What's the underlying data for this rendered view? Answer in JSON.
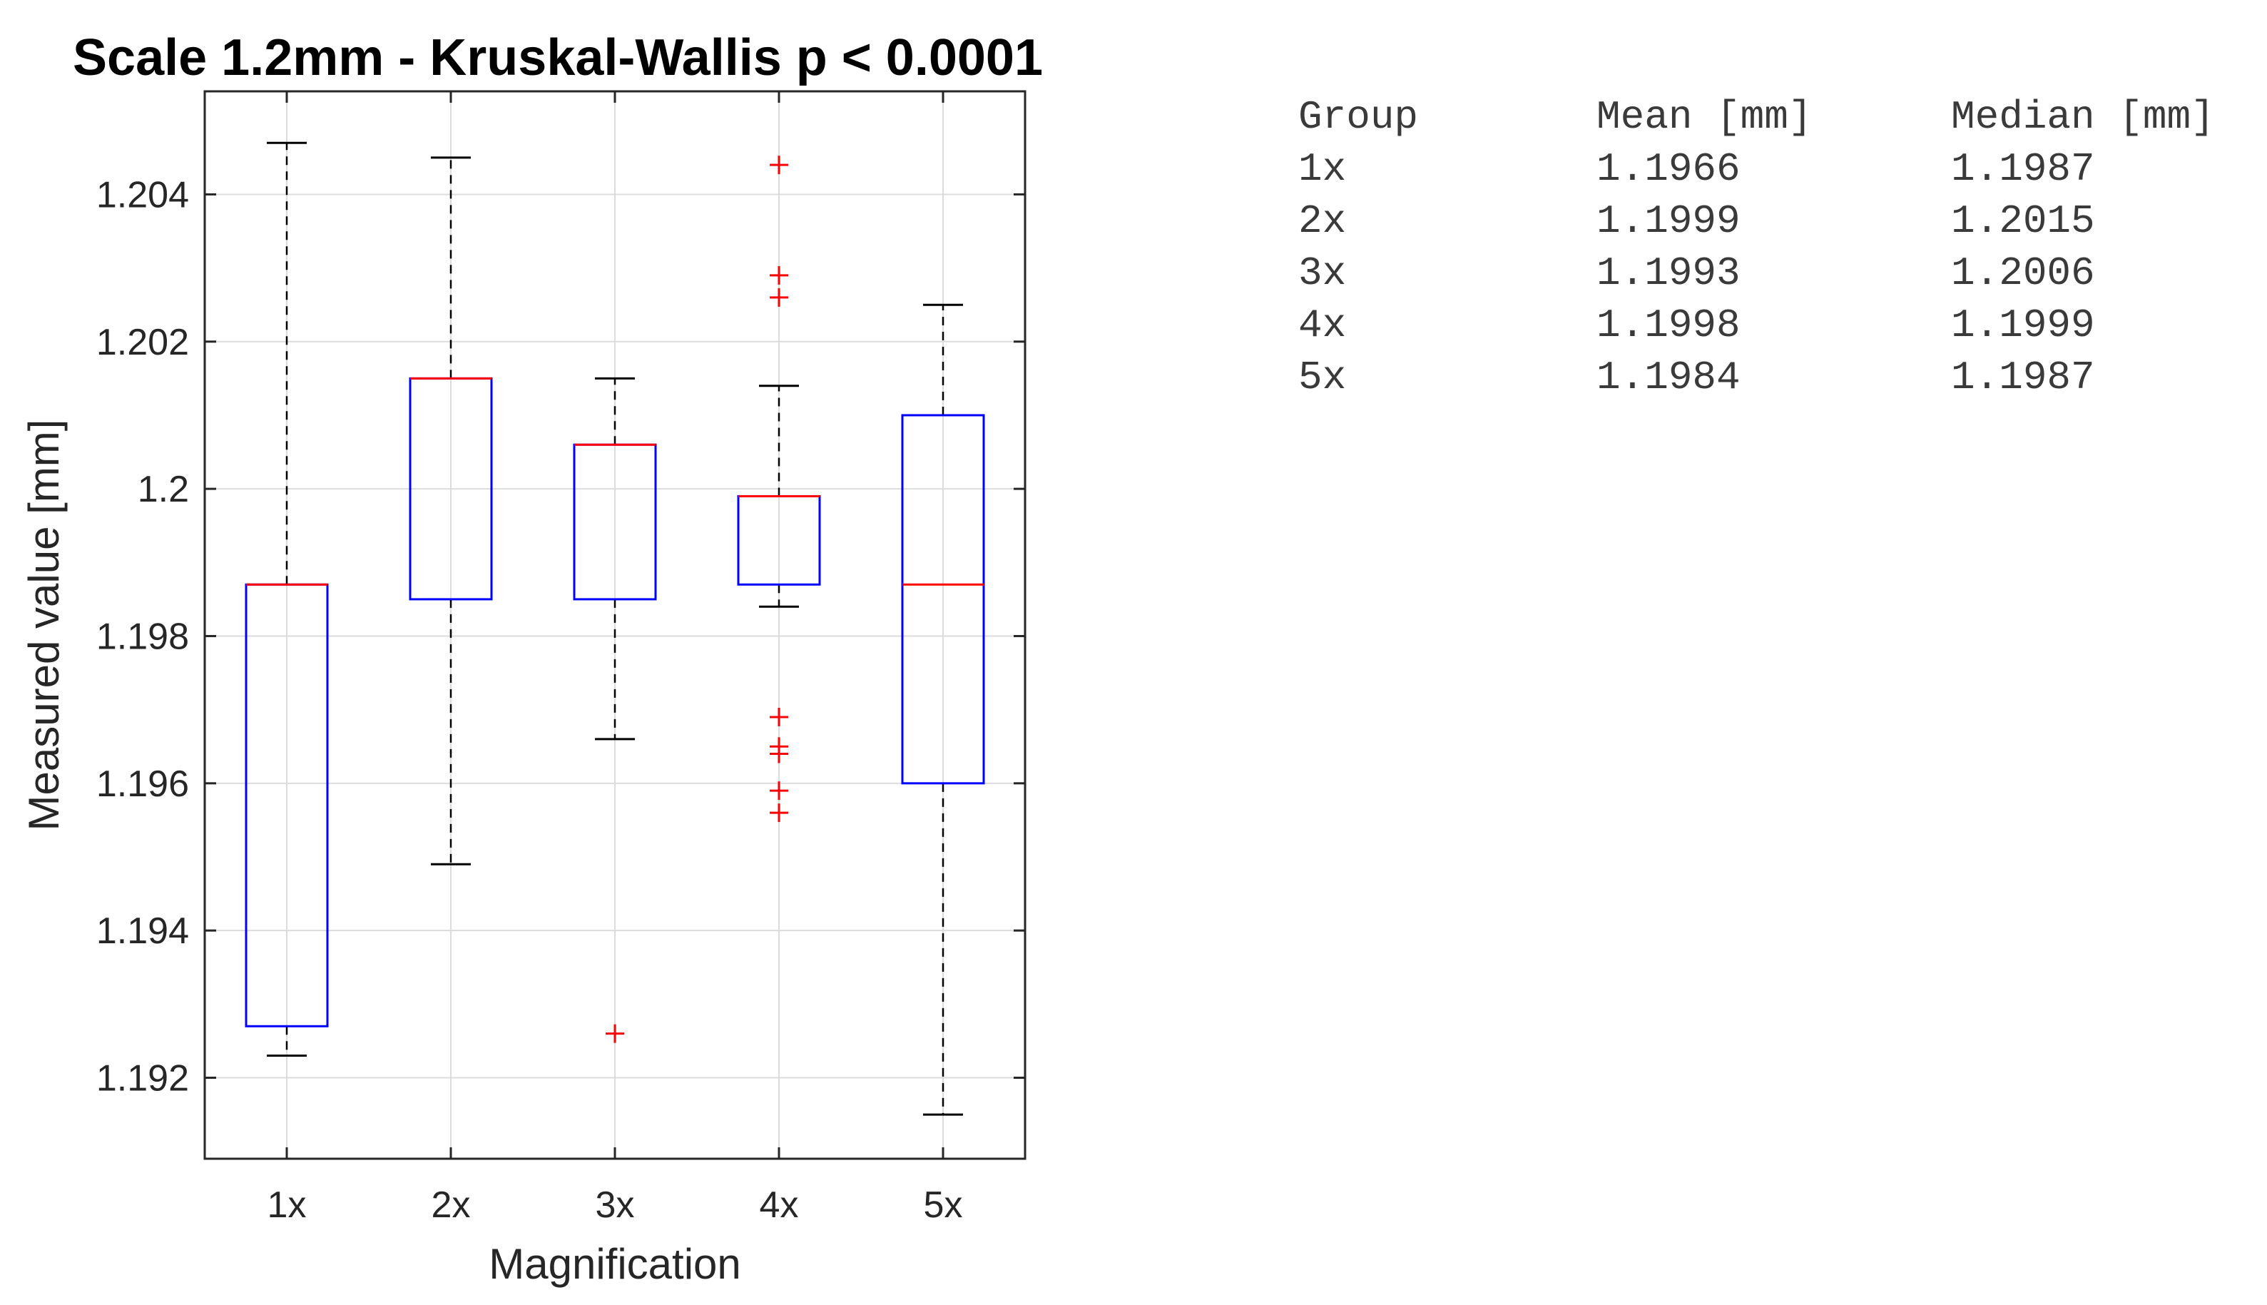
{
  "chart_data": {
    "type": "box",
    "title": "Scale 1.2mm - Kruskal-Wallis p < 0.0001",
    "xlabel": "Magnification",
    "ylabel": "Measured value [mm]",
    "ylim": [
      1.1909,
      1.2054
    ],
    "yticks": [
      1.192,
      1.194,
      1.196,
      1.198,
      1.2,
      1.202,
      1.204
    ],
    "yticklabels": [
      "1.192",
      "1.194",
      "1.196",
      "1.198",
      "1.2",
      "1.202",
      "1.204"
    ],
    "grid": true,
    "categories": [
      "1x",
      "2x",
      "3x",
      "4x",
      "5x"
    ],
    "boxes": [
      {
        "label": "1x",
        "whisker_low": 1.1923,
        "q1": 1.1927,
        "median": 1.1987,
        "q3": 1.1987,
        "whisker_high": 1.2047,
        "outliers": []
      },
      {
        "label": "2x",
        "whisker_low": 1.1949,
        "q1": 1.1985,
        "median": 1.2015,
        "q3": 1.2015,
        "whisker_high": 1.2045,
        "outliers": []
      },
      {
        "label": "3x",
        "whisker_low": 1.1966,
        "q1": 1.1985,
        "median": 1.2006,
        "q3": 1.2006,
        "whisker_high": 1.2015,
        "outliers": [
          1.1926
        ]
      },
      {
        "label": "4x",
        "whisker_low": 1.1984,
        "q1": 1.1987,
        "median": 1.1999,
        "q3": 1.1999,
        "whisker_high": 1.2014,
        "outliers": [
          1.2044,
          1.2029,
          1.2026,
          1.1969,
          1.1965,
          1.1964,
          1.1959,
          1.1956
        ]
      },
      {
        "label": "5x",
        "whisker_low": 1.1915,
        "q1": 1.196,
        "median": 1.1987,
        "q3": 1.201,
        "whisker_high": 1.2025,
        "outliers": []
      }
    ],
    "colors": {
      "box": "#0000ff",
      "median": "#ff0000",
      "whisker": "#000000",
      "outlier": "#ff0000",
      "grid": "#dcdcdc"
    }
  },
  "stats_table": {
    "headers": [
      "Group",
      "Mean [mm]",
      "Median [mm]"
    ],
    "rows": [
      [
        "1x",
        "1.1966",
        "1.1987"
      ],
      [
        "2x",
        "1.1999",
        "1.2015"
      ],
      [
        "3x",
        "1.1993",
        "1.2006"
      ],
      [
        "4x",
        "1.1998",
        "1.1999"
      ],
      [
        "5x",
        "1.1984",
        "1.1987"
      ]
    ]
  }
}
